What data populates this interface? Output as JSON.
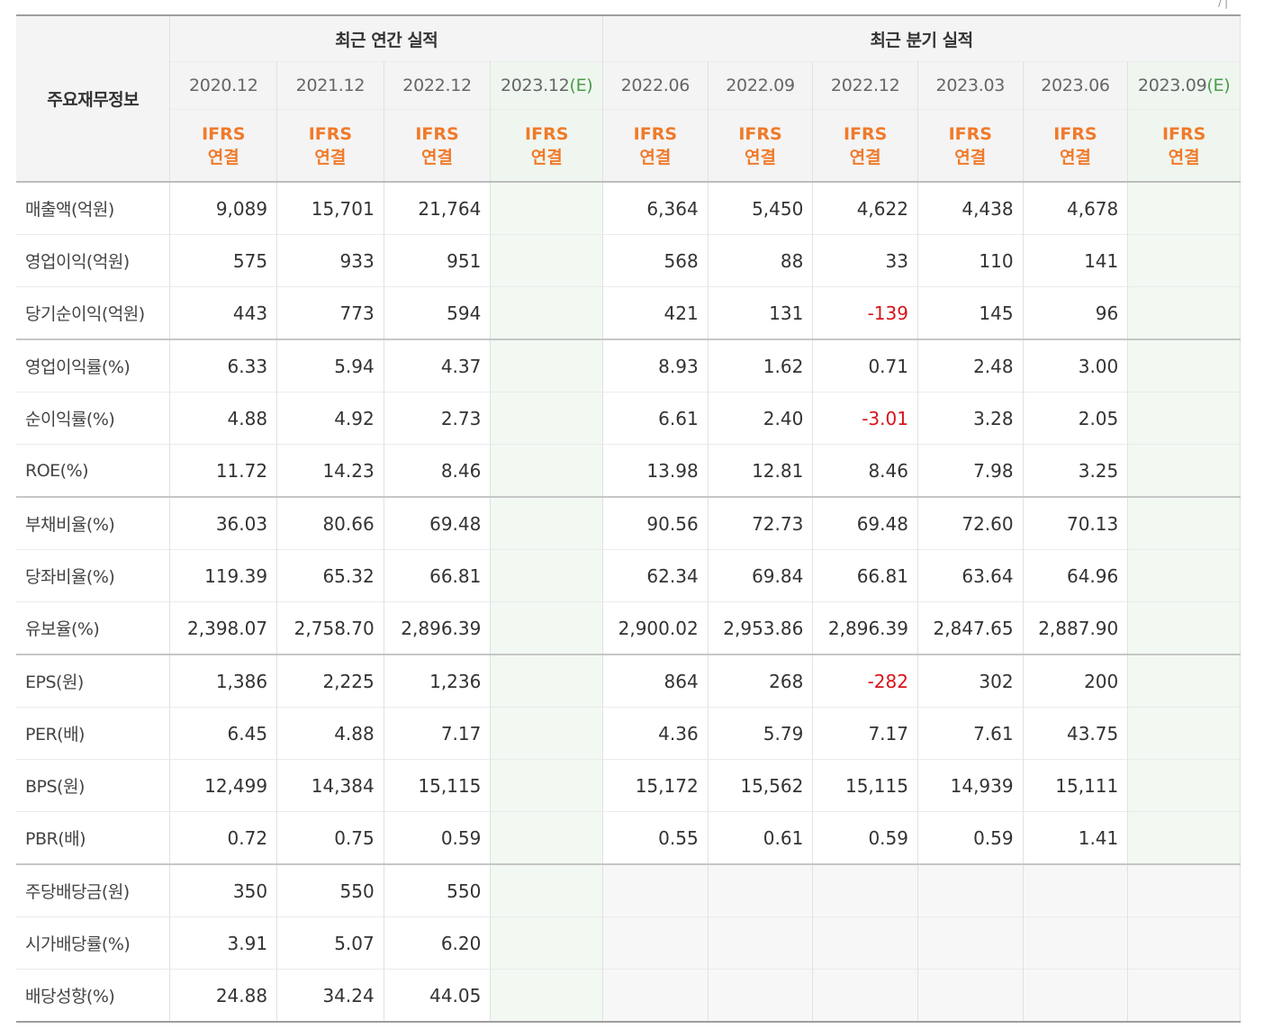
{
  "header": {
    "corner": "/ |",
    "label_head": "주요재무정보",
    "annual_title": "최근 연간 실적",
    "quarter_title": "최근 분기 실적",
    "annual_periods": [
      {
        "date": "2020.12",
        "est": ""
      },
      {
        "date": "2021.12",
        "est": ""
      },
      {
        "date": "2022.12",
        "est": ""
      },
      {
        "date": "2023.12",
        "est": "(E)"
      }
    ],
    "quarter_periods": [
      {
        "date": "2022.06",
        "est": ""
      },
      {
        "date": "2022.09",
        "est": ""
      },
      {
        "date": "2022.12",
        "est": ""
      },
      {
        "date": "2023.03",
        "est": ""
      },
      {
        "date": "2023.06",
        "est": ""
      },
      {
        "date": "2023.09",
        "est": "(E)"
      }
    ],
    "ifrs_top": "IFRS",
    "ifrs_bottom": "연결"
  },
  "rows": [
    {
      "label": "매출액(억원)",
      "annual": [
        "9,089",
        "15,701",
        "21,764",
        ""
      ],
      "quarter": [
        "6,364",
        "5,450",
        "4,622",
        "4,438",
        "4,678",
        ""
      ]
    },
    {
      "label": "영업이익(억원)",
      "annual": [
        "575",
        "933",
        "951",
        ""
      ],
      "quarter": [
        "568",
        "88",
        "33",
        "110",
        "141",
        ""
      ]
    },
    {
      "label": "당기순이익(억원)",
      "annual": [
        "443",
        "773",
        "594",
        ""
      ],
      "quarter": [
        "421",
        "131",
        "-139",
        "145",
        "96",
        ""
      ]
    },
    {
      "label": "영업이익률(%)",
      "annual": [
        "6.33",
        "5.94",
        "4.37",
        ""
      ],
      "quarter": [
        "8.93",
        "1.62",
        "0.71",
        "2.48",
        "3.00",
        ""
      ]
    },
    {
      "label": "순이익률(%)",
      "annual": [
        "4.88",
        "4.92",
        "2.73",
        ""
      ],
      "quarter": [
        "6.61",
        "2.40",
        "-3.01",
        "3.28",
        "2.05",
        ""
      ]
    },
    {
      "label": "ROE(%)",
      "annual": [
        "11.72",
        "14.23",
        "8.46",
        ""
      ],
      "quarter": [
        "13.98",
        "12.81",
        "8.46",
        "7.98",
        "3.25",
        ""
      ]
    },
    {
      "label": "부채비율(%)",
      "annual": [
        "36.03",
        "80.66",
        "69.48",
        ""
      ],
      "quarter": [
        "90.56",
        "72.73",
        "69.48",
        "72.60",
        "70.13",
        ""
      ]
    },
    {
      "label": "당좌비율(%)",
      "annual": [
        "119.39",
        "65.32",
        "66.81",
        ""
      ],
      "quarter": [
        "62.34",
        "69.84",
        "66.81",
        "63.64",
        "64.96",
        ""
      ]
    },
    {
      "label": "유보율(%)",
      "annual": [
        "2,398.07",
        "2,758.70",
        "2,896.39",
        ""
      ],
      "quarter": [
        "2,900.02",
        "2,953.86",
        "2,896.39",
        "2,847.65",
        "2,887.90",
        ""
      ]
    },
    {
      "label": "EPS(원)",
      "annual": [
        "1,386",
        "2,225",
        "1,236",
        ""
      ],
      "quarter": [
        "864",
        "268",
        "-282",
        "302",
        "200",
        ""
      ]
    },
    {
      "label": "PER(배)",
      "annual": [
        "6.45",
        "4.88",
        "7.17",
        ""
      ],
      "quarter": [
        "4.36",
        "5.79",
        "7.17",
        "7.61",
        "43.75",
        ""
      ]
    },
    {
      "label": "BPS(원)",
      "annual": [
        "12,499",
        "14,384",
        "15,115",
        ""
      ],
      "quarter": [
        "15,172",
        "15,562",
        "15,115",
        "14,939",
        "15,111",
        ""
      ]
    },
    {
      "label": "PBR(배)",
      "annual": [
        "0.72",
        "0.75",
        "0.59",
        ""
      ],
      "quarter": [
        "0.55",
        "0.61",
        "0.59",
        "0.59",
        "1.41",
        ""
      ]
    },
    {
      "label": "주당배당금(원)",
      "annual": [
        "350",
        "550",
        "550",
        ""
      ],
      "quarter": [
        "",
        "",
        "",
        "",
        "",
        ""
      ]
    },
    {
      "label": "시가배당률(%)",
      "annual": [
        "3.91",
        "5.07",
        "6.20",
        ""
      ],
      "quarter": [
        "",
        "",
        "",
        "",
        "",
        ""
      ]
    },
    {
      "label": "배당성향(%)",
      "annual": [
        "24.88",
        "34.24",
        "44.05",
        ""
      ],
      "quarter": [
        "",
        "",
        "",
        "",
        "",
        ""
      ]
    }
  ],
  "colors": {
    "negative": "#d8141a",
    "ifrs": "#f07a2a",
    "estimate": "#4a9c4a"
  }
}
